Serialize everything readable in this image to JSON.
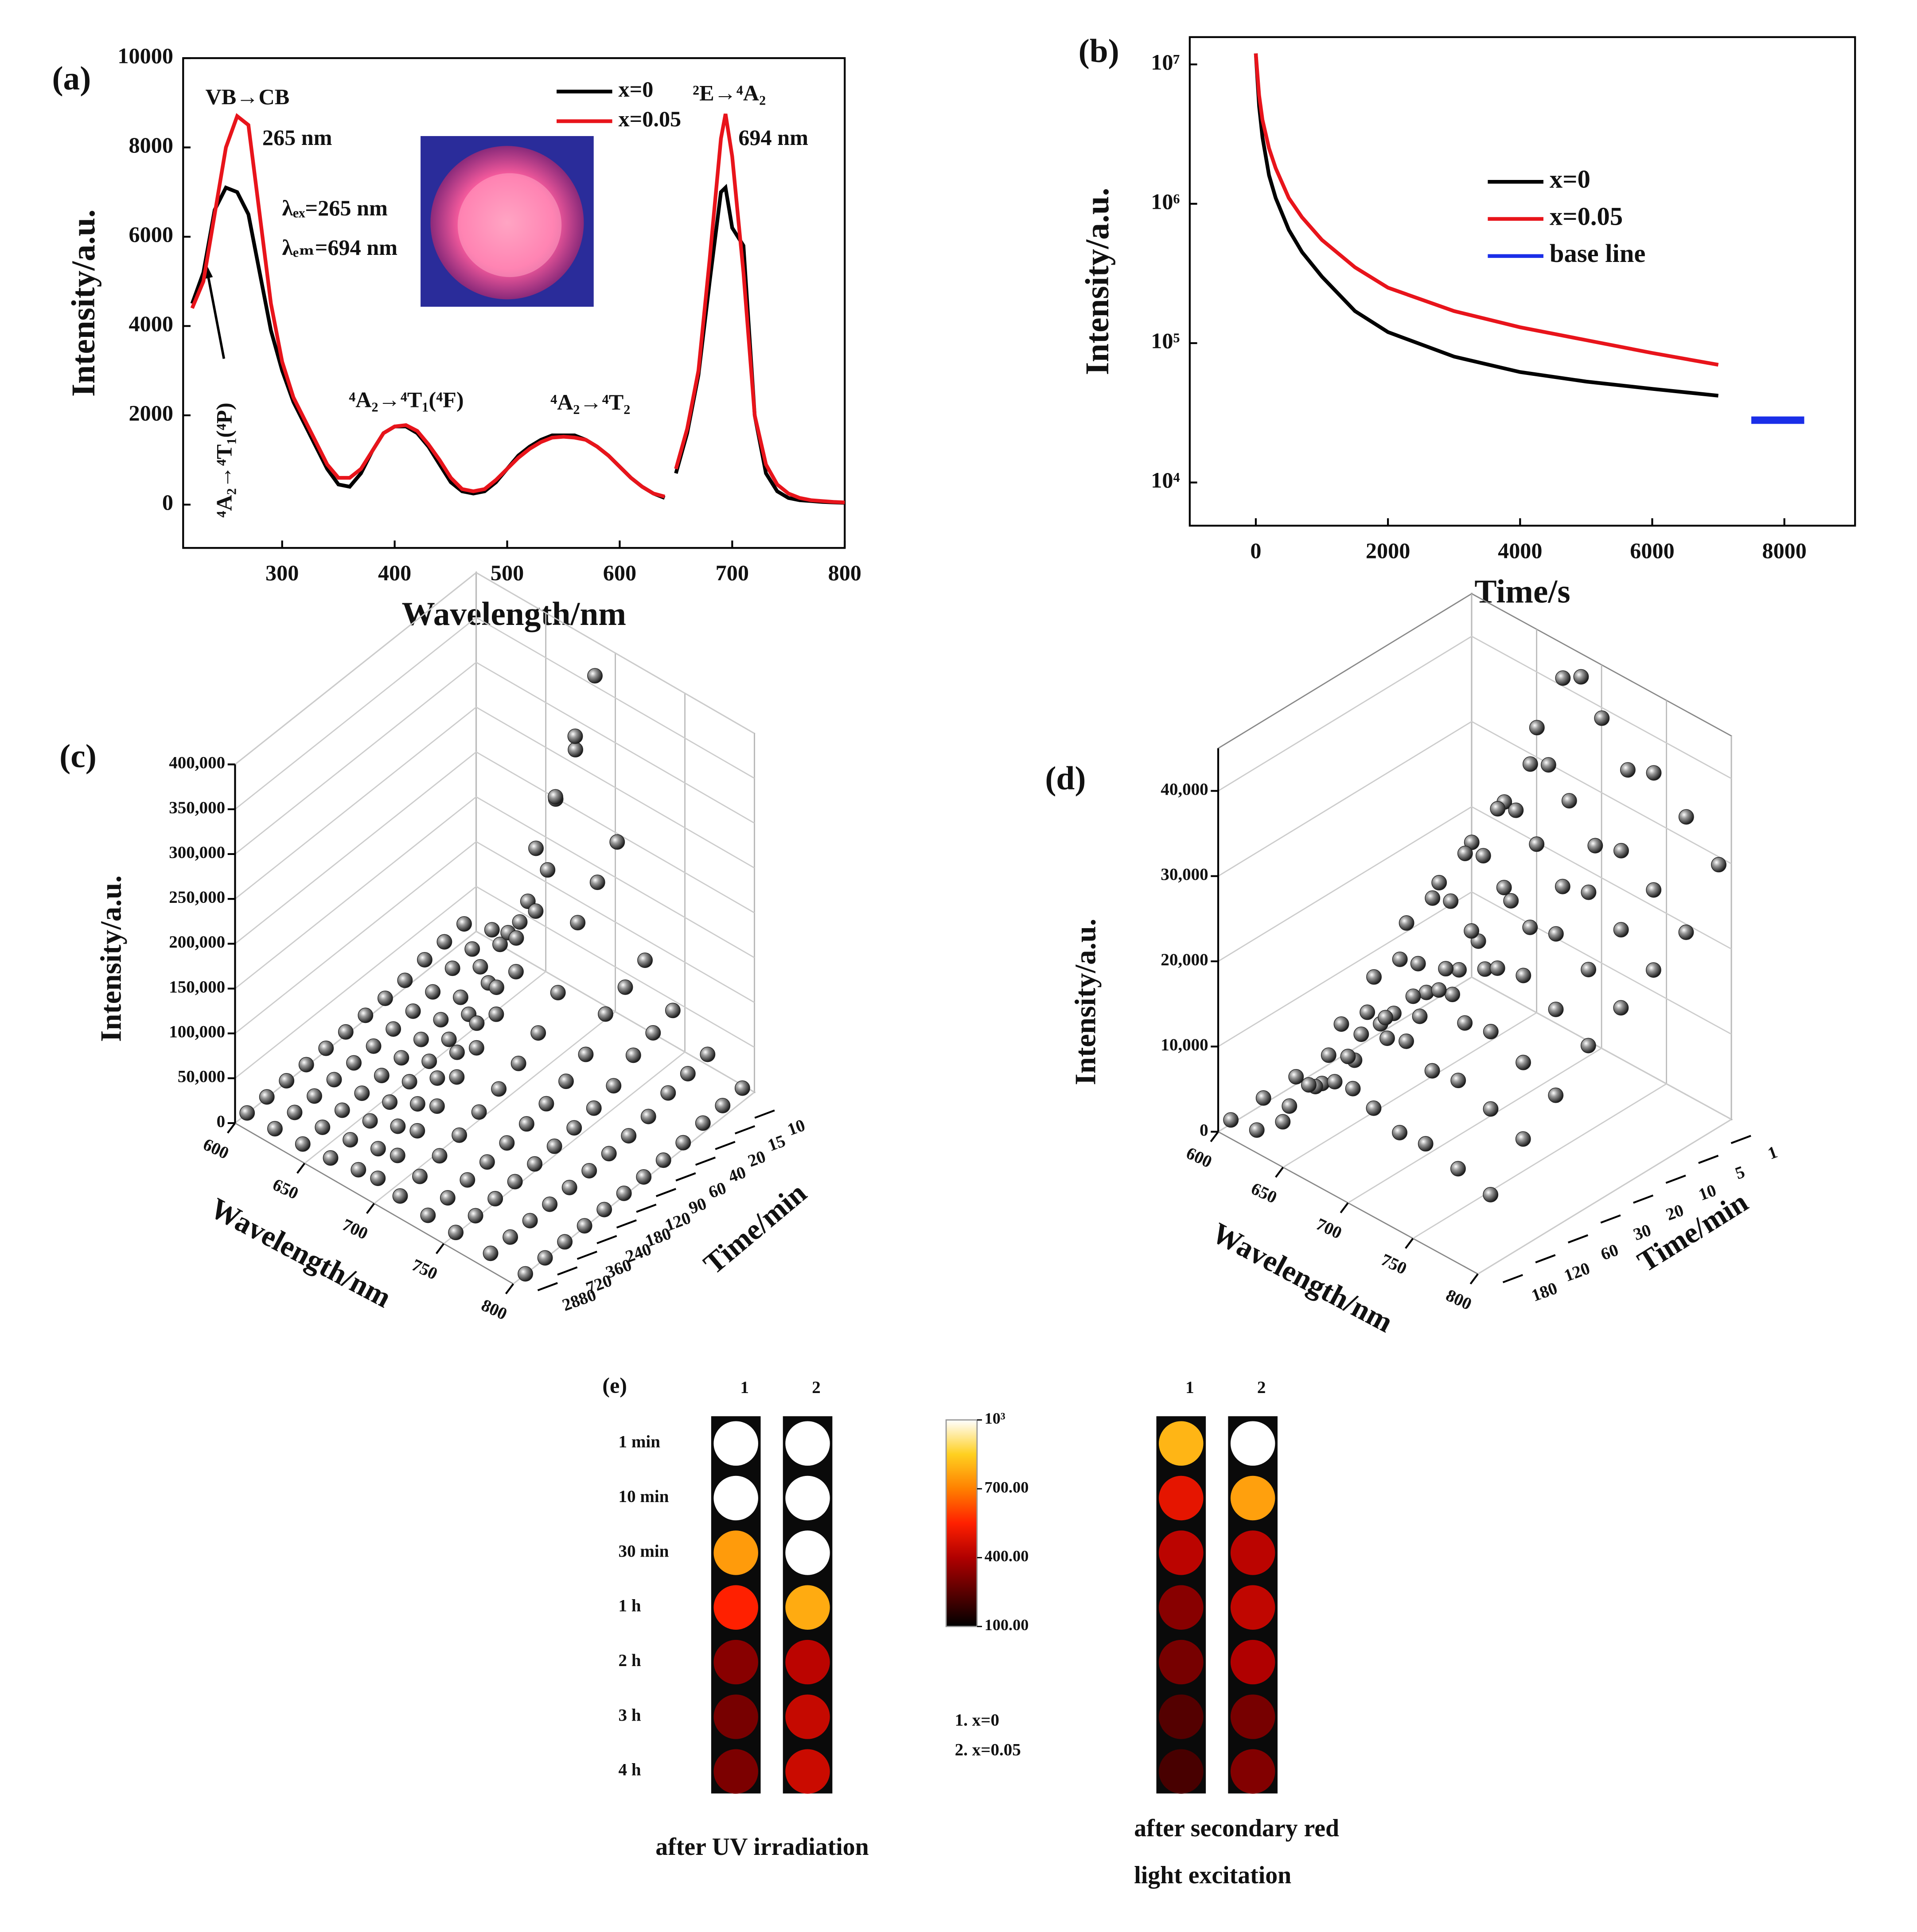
{
  "chart_data": [
    {
      "type": "line",
      "label": "(a)",
      "xlabel": "Wavelength/nm",
      "ylabel": "Intensity/a.u.",
      "x": [
        220,
        230,
        240,
        250,
        260,
        270,
        280,
        290,
        300,
        310,
        320,
        330,
        340,
        350,
        360,
        370,
        380,
        390,
        400,
        410,
        420,
        430,
        440,
        450,
        460,
        470,
        480,
        490,
        500,
        510,
        520,
        530,
        540,
        550,
        560,
        570,
        580,
        590,
        600,
        610,
        620,
        630,
        640,
        645,
        650,
        660,
        670,
        680,
        690,
        694,
        700,
        710,
        720,
        730,
        740,
        750,
        760,
        770,
        780,
        790,
        800
      ],
      "series": [
        {
          "name": "x=0",
          "color": "#000000",
          "values": [
            4500,
            5200,
            6600,
            7100,
            7000,
            6500,
            5200,
            3900,
            3000,
            2300,
            1800,
            1300,
            800,
            450,
            400,
            700,
            1200,
            1600,
            1750,
            1750,
            1600,
            1300,
            900,
            500,
            300,
            250,
            300,
            500,
            800,
            1100,
            1300,
            1450,
            1550,
            1550,
            1550,
            1450,
            1300,
            1100,
            850,
            600,
            400,
            250,
            150,
            null,
            700,
            1600,
            2900,
            5000,
            7000,
            7100,
            6200,
            5800,
            2000,
            700,
            300,
            150,
            100,
            80,
            60,
            50,
            40
          ]
        },
        {
          "name": "x=0.05",
          "color": "#e8141b",
          "values": [
            4400,
            5000,
            6500,
            8000,
            8700,
            8500,
            6500,
            4500,
            3200,
            2400,
            1900,
            1400,
            900,
            600,
            600,
            800,
            1200,
            1600,
            1750,
            1780,
            1650,
            1350,
            1000,
            600,
            350,
            300,
            350,
            550,
            800,
            1050,
            1250,
            1400,
            1500,
            1520,
            1500,
            1450,
            1300,
            1100,
            850,
            600,
            400,
            250,
            180,
            null,
            800,
            1700,
            3000,
            5500,
            8200,
            8750,
            7800,
            5200,
            2000,
            900,
            450,
            250,
            150,
            100,
            80,
            60,
            50
          ]
        }
      ],
      "xlim": [
        212,
        800
      ],
      "xticks": [
        300,
        400,
        500,
        600,
        700,
        800
      ],
      "ylim": [
        -970,
        10000
      ],
      "yticks": [
        0,
        2000,
        4000,
        6000,
        8000,
        10000
      ],
      "annotations": [
        "VB→CB",
        "265 nm",
        "λₑₓ=265 nm",
        "λₑₘ=694 nm",
        "⁴A₂→⁴T₁(⁴F)",
        "⁴A₂→⁴T₂",
        "²E→⁴A₂",
        "694 nm",
        "⁴A₂→⁴T₁(⁴P)"
      ]
    },
    {
      "type": "line",
      "label": "(b)",
      "xlabel": "Time/s",
      "ylabel": "Intensity/a.u.",
      "log_y": true,
      "series": [
        {
          "name": "x=0",
          "color": "#000000",
          "x": [
            0,
            50,
            100,
            200,
            300,
            500,
            700,
            1000,
            1500,
            2000,
            3000,
            4000,
            5000,
            6000,
            7000
          ],
          "values": [
            12000000,
            5000000,
            3000000,
            1600000,
            1100000,
            650000,
            450000,
            300000,
            170000,
            120000,
            80000,
            62000,
            53000,
            47000,
            42000
          ]
        },
        {
          "name": "x=0.05",
          "color": "#e8141b",
          "x": [
            0,
            50,
            100,
            200,
            300,
            500,
            700,
            1000,
            1500,
            2000,
            3000,
            4000,
            5000,
            6000,
            7000
          ],
          "values": [
            12000000,
            6000000,
            4000000,
            2500000,
            1800000,
            1100000,
            800000,
            550000,
            350000,
            250000,
            170000,
            130000,
            105000,
            85000,
            70000
          ]
        },
        {
          "name": "base line",
          "color": "#1a2ee8",
          "x": [
            7500,
            8300
          ],
          "values": [
            28000,
            28000
          ]
        }
      ],
      "xlim": [
        -1000,
        9070
      ],
      "xticks": [
        0,
        2000,
        4000,
        6000,
        8000
      ],
      "ylim": [
        4900,
        15700000
      ],
      "yticks": [
        {
          "value": 10000,
          "label": "10⁴"
        },
        {
          "value": 100000,
          "label": "10⁵"
        },
        {
          "value": 1000000,
          "label": "10⁶"
        },
        {
          "value": 10000000,
          "label": "10⁷"
        }
      ]
    },
    {
      "type": "scatter3d",
      "label": "(c)",
      "xlabel": "Wavelength/nm",
      "ylabel": "Time/min",
      "zlabel": "Intensity/a.u.",
      "x": [
        600,
        620,
        640,
        660,
        680,
        694,
        710,
        730,
        750,
        775,
        800
      ],
      "xlim": [
        600,
        800
      ],
      "xticks": [
        600,
        650,
        700,
        750,
        800
      ],
      "zlim": [
        0,
        400000
      ],
      "zticks": [
        0,
        {
          "value": 50000,
          "label": "50,000"
        },
        {
          "value": 100000,
          "label": "100,000"
        },
        {
          "value": 150000,
          "label": "150,000"
        },
        {
          "value": 200000,
          "label": "200,000"
        },
        {
          "value": 250000,
          "label": "250,000"
        },
        {
          "value": 300000,
          "label": "300,000"
        },
        {
          "value": 350000,
          "label": "350,000"
        },
        {
          "value": 400000,
          "label": "400,000"
        }
      ],
      "series": [
        {
          "name": "10",
          "values": [
            19000,
            30400,
            57000,
            133000,
            285000,
            380000,
            209000,
            95000,
            57000,
            30400,
            15200
          ]
        },
        {
          "name": "15",
          "values": [
            16500,
            26400,
            49500,
            115500,
            247500,
            330000,
            181500,
            82500,
            49500,
            26400,
            13200
          ]
        },
        {
          "name": "20",
          "values": [
            14000,
            22400,
            42000,
            98000,
            210000,
            280000,
            154000,
            70000,
            42000,
            22400,
            11200
          ]
        },
        {
          "name": "40",
          "values": [
            8500,
            13600,
            25500,
            59500,
            127500,
            170000,
            93500,
            42500,
            25500,
            13600,
            6800
          ]
        },
        {
          "name": "60",
          "values": [
            6000,
            9600,
            18000,
            42000,
            90000,
            120000,
            66000,
            30000,
            18000,
            9600,
            4800
          ]
        },
        {
          "name": "90",
          "values": [
            4500,
            7200,
            13500,
            31500,
            67500,
            90000,
            49500,
            22500,
            13500,
            7200,
            3600
          ]
        },
        {
          "name": "120",
          "values": [
            3500,
            5600,
            10500,
            24500,
            52500,
            70000,
            38500,
            17500,
            10500,
            5600,
            2800
          ]
        },
        {
          "name": "180",
          "values": [
            2750,
            4400,
            8250,
            19250,
            41250,
            55000,
            30250,
            13750,
            8250,
            4400,
            2200
          ]
        },
        {
          "name": "240",
          "values": [
            2000,
            3200,
            6000,
            14000,
            30000,
            40000,
            22000,
            10000,
            6000,
            3200,
            1600
          ]
        },
        {
          "name": "360",
          "values": [
            1500,
            2400,
            4500,
            10500,
            22500,
            30000,
            16500,
            7500,
            4500,
            2400,
            1200
          ]
        },
        {
          "name": "720",
          "values": [
            1000,
            1600,
            3000,
            7000,
            15000,
            20000,
            11000,
            5000,
            3000,
            1600,
            800
          ]
        },
        {
          "name": "2880",
          "values": [
            600,
            960,
            1800,
            4200,
            9000,
            12000,
            6600,
            3000,
            1800,
            960,
            480
          ]
        }
      ]
    },
    {
      "type": "scatter3d",
      "label": "(d)",
      "xlabel": "Wavelength/nm",
      "ylabel": "Time/min",
      "zlabel": "Intensity/a.u.",
      "x": [
        600,
        620,
        640,
        660,
        680,
        694,
        710,
        730,
        750,
        775,
        800
      ],
      "xlim": [
        600,
        800
      ],
      "xticks": [
        600,
        650,
        700,
        750,
        800
      ],
      "zlim": [
        0,
        45000
      ],
      "zticks": [
        0,
        {
          "value": 10000,
          "label": "10,000"
        },
        {
          "value": 20000,
          "label": "20,000"
        },
        {
          "value": 30000,
          "label": "30,000"
        },
        {
          "value": 40000,
          "label": "40,000"
        }
      ],
      "series": [
        {
          "name": "1",
          "values": [
            1760,
            3520,
            13200,
            35200,
            42680,
            44000,
            40480,
            36080,
            37400,
            34320,
            30800
          ]
        },
        {
          "name": "5",
          "values": [
            1440,
            2880,
            10800,
            28800,
            34920,
            36000,
            33120,
            29520,
            30600,
            28080,
            25200
          ]
        },
        {
          "name": "10",
          "values": [
            1320,
            2640,
            9900,
            26400,
            32010,
            33000,
            30360,
            27060,
            28050,
            25740,
            23100
          ]
        },
        {
          "name": "20",
          "values": [
            1200,
            2400,
            9000,
            24000,
            29100,
            30000,
            27600,
            24600,
            25500,
            23400,
            21000
          ]
        },
        {
          "name": "30",
          "values": [
            1080,
            2160,
            8100,
            21600,
            26190,
            27000,
            24840,
            22140,
            22950,
            21060,
            18900
          ]
        },
        {
          "name": "60",
          "values": [
            880,
            1760,
            6600,
            17600,
            21340,
            22000,
            20240,
            18040,
            18700,
            17160,
            15400
          ]
        },
        {
          "name": "120",
          "values": [
            720,
            1440,
            5400,
            14400,
            17460,
            18000,
            16560,
            14760,
            15300,
            14040,
            12600
          ]
        },
        {
          "name": "180",
          "values": [
            480,
            960,
            3600,
            9600,
            11640,
            12000,
            11040,
            9840,
            10200,
            9360,
            8400
          ]
        }
      ]
    },
    {
      "type": "heatmap",
      "label": "(e)",
      "rows": [
        "1 min",
        "10 min",
        "30 min",
        "1 h",
        "2 h",
        "3 h",
        "4 h"
      ],
      "panels": [
        {
          "caption": [
            "after UV irradiation"
          ],
          "columns": [
            "1",
            "2"
          ],
          "values": [
            [
              1000,
              1000
            ],
            [
              1000,
              1000
            ],
            [
              750,
              1000
            ],
            [
              550,
              780
            ],
            [
              330,
              420
            ],
            [
              300,
              440
            ],
            [
              310,
              450
            ]
          ]
        },
        {
          "caption": [
            "after secondary red",
            "light excitation"
          ],
          "columns": [
            "1",
            "2"
          ],
          "values": [
            [
              800,
              1000
            ],
            [
              500,
              760
            ],
            [
              420,
              420
            ],
            [
              330,
              430
            ],
            [
              300,
              400
            ],
            [
              240,
              300
            ],
            [
              220,
              320
            ]
          ]
        }
      ],
      "colorbar": {
        "lim": [
          100,
          1000
        ],
        "ticks": [
          {
            "value": 1000,
            "label": "10³"
          },
          {
            "value": 700,
            "label": "700.00"
          },
          {
            "value": 400,
            "label": "400.00"
          },
          {
            "value": 100,
            "label": "100.00"
          }
        ],
        "colors": [
          "#000000",
          "#5a0000",
          "#b00000",
          "#ff2000",
          "#ff8000",
          "#ffd020",
          "#ffffff"
        ]
      },
      "notes": [
        "1. x=0",
        "2. x=0.05"
      ]
    }
  ]
}
